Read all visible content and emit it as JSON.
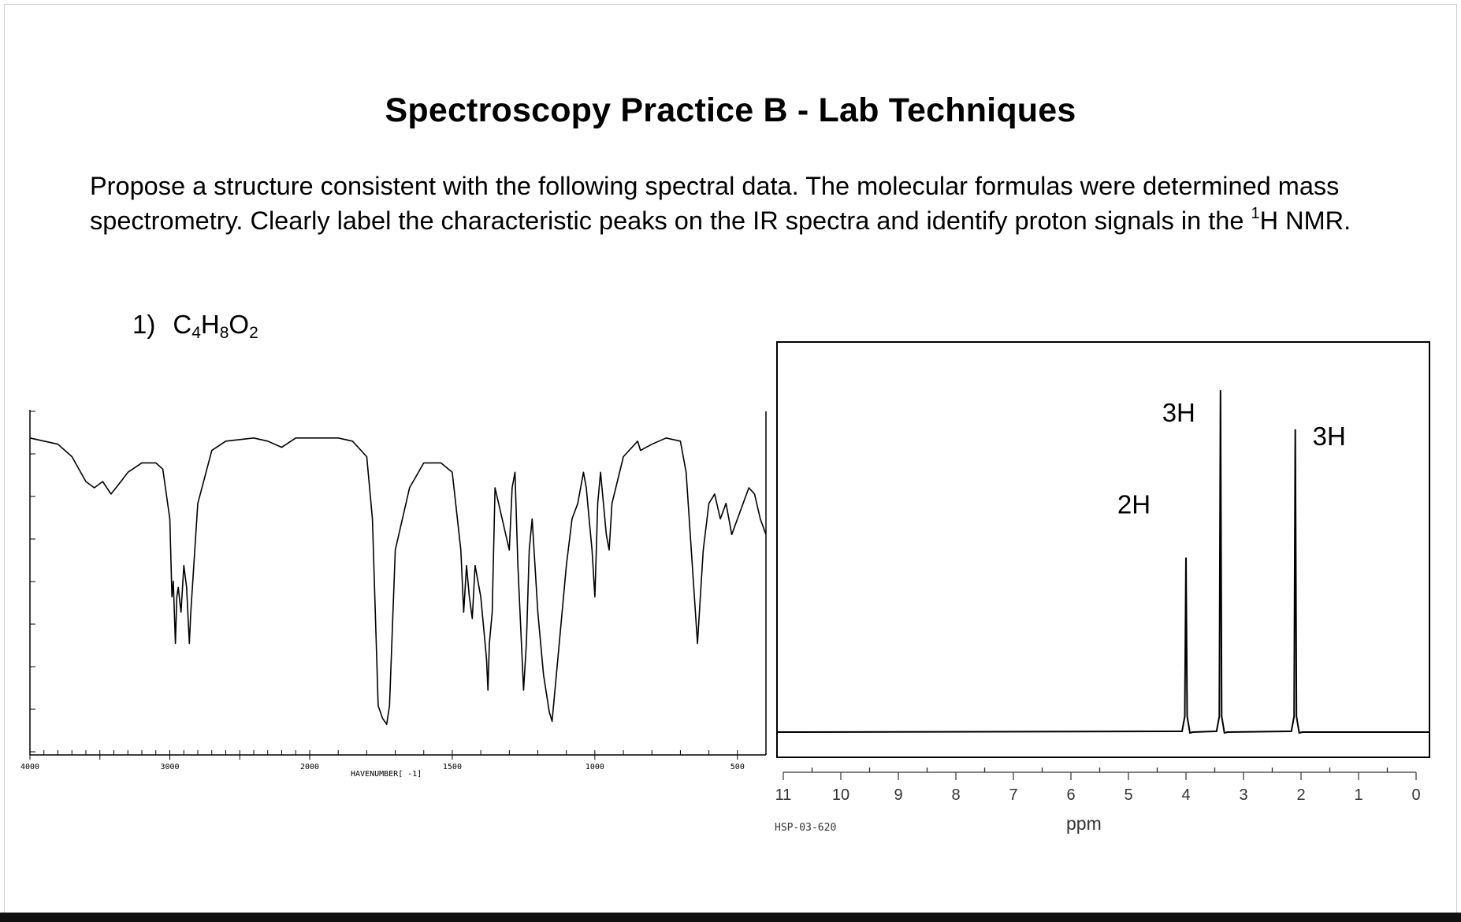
{
  "document": {
    "title": "Spectroscopy Practice B - Lab Techniques",
    "instructions_main": "Propose a structure consistent with the following spectral data. The molecular formulas were determined mass spectrometry. Clearly label the characteristic peaks on the IR spectra and identify proton signals in the ",
    "instructions_sup": "1",
    "instructions_end": "H NMR.",
    "question": {
      "number": "1)",
      "formula_parts": [
        "C",
        "4",
        "H",
        "8",
        "O",
        "2"
      ]
    }
  },
  "ir": {
    "xlabel": "HAVENUMBER[ -1]",
    "ticks": [
      "4000",
      "3000",
      "2000",
      "1500",
      "1000",
      "500"
    ]
  },
  "nmr": {
    "xlabel": "ppm",
    "ticks": [
      "11",
      "10",
      "9",
      "8",
      "7",
      "6",
      "5",
      "4",
      "3",
      "2",
      "1",
      "0"
    ],
    "code": "HSP-03-620",
    "peak_labels": [
      "2H",
      "3H",
      "3H"
    ]
  },
  "chart_data": [
    {
      "type": "line",
      "name": "IR spectrum",
      "xlabel": "HAVENUMBER[ -1]",
      "xlim": [
        4000,
        400
      ],
      "x_ticks": [
        4000,
        3000,
        2000,
        1500,
        1000,
        500
      ],
      "ylim": [
        0,
        100
      ],
      "series": [
        {
          "x": [
            4000,
            3800,
            3700,
            3600,
            3540,
            3480,
            3420,
            3350,
            3300,
            3200,
            3100,
            3050,
            3000,
            2985,
            2975,
            2960,
            2950,
            2940,
            2920,
            2900,
            2880,
            2860,
            2850,
            2800,
            2700,
            2600,
            2400,
            2300,
            2200,
            2100,
            2000,
            1900,
            1850,
            1800,
            1780,
            1760,
            1745,
            1730,
            1720,
            1700,
            1650,
            1600,
            1540,
            1500,
            1470,
            1460,
            1450,
            1440,
            1430,
            1420,
            1400,
            1380,
            1375,
            1370,
            1360,
            1350,
            1300,
            1290,
            1280,
            1270,
            1260,
            1250,
            1240,
            1230,
            1220,
            1210,
            1200,
            1190,
            1180,
            1160,
            1150,
            1120,
            1100,
            1080,
            1060,
            1040,
            1030,
            1020,
            1010,
            1000,
            990,
            980,
            960,
            950,
            940,
            900,
            850,
            840,
            800,
            750,
            700,
            680,
            640,
            620,
            600,
            580,
            560,
            540,
            520,
            500,
            480,
            460,
            440,
            420,
            400
          ],
          "y": [
            96,
            94,
            90,
            82,
            80,
            82,
            78,
            82,
            85,
            88,
            88,
            86,
            70,
            45,
            50,
            30,
            45,
            48,
            40,
            55,
            48,
            30,
            40,
            75,
            92,
            95,
            96,
            95,
            93,
            96,
            96,
            96,
            95,
            90,
            70,
            10,
            6,
            4,
            10,
            60,
            80,
            88,
            88,
            85,
            60,
            40,
            55,
            45,
            38,
            55,
            45,
            25,
            15,
            30,
            40,
            80,
            60,
            80,
            85,
            55,
            35,
            15,
            30,
            60,
            70,
            55,
            40,
            30,
            20,
            8,
            5,
            35,
            55,
            70,
            75,
            85,
            80,
            70,
            60,
            45,
            75,
            85,
            65,
            60,
            75,
            90,
            95,
            92,
            94,
            96,
            95,
            85,
            30,
            60,
            75,
            78,
            70,
            75,
            65,
            70,
            75,
            80,
            78,
            70,
            65
          ]
        }
      ]
    },
    {
      "type": "line",
      "name": "1H NMR spectrum",
      "xlabel": "ppm",
      "xlim": [
        11,
        0
      ],
      "x_ticks": [
        11,
        10,
        9,
        8,
        7,
        6,
        5,
        4,
        3,
        2,
        1,
        0
      ],
      "ylim": [
        0,
        100
      ],
      "peaks": [
        {
          "ppm": 4.0,
          "height": 49,
          "integration": "2H"
        },
        {
          "ppm": 3.4,
          "height": 96,
          "integration": "3H"
        },
        {
          "ppm": 2.1,
          "height": 85,
          "integration": "3H"
        }
      ]
    }
  ]
}
